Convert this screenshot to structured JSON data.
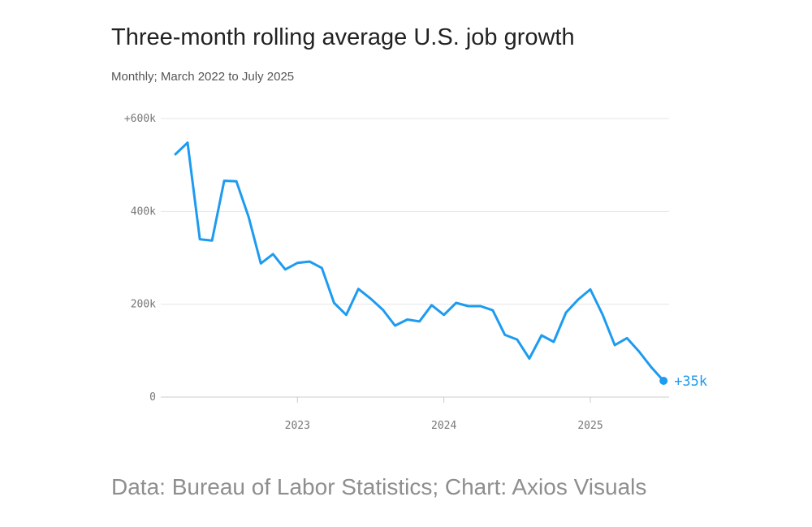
{
  "title": "Three-month rolling average U.S. job growth",
  "subtitle": "Monthly; March 2022 to July 2025",
  "source": "Data: Bureau of Labor Statistics; Chart: Axios Visuals",
  "colors": {
    "line": "#1d9bf0",
    "grid": "#e6e6e6",
    "axis": "#cccccc",
    "tick_text": "#777777"
  },
  "chart_data": {
    "type": "line",
    "title": "Three-month rolling average U.S. job growth",
    "subtitle": "Monthly; March 2022 to July 2025",
    "xlabel": "",
    "ylabel": "",
    "ylim": [
      0,
      600000
    ],
    "xlim": [
      "2022-03",
      "2025-07"
    ],
    "grid": true,
    "y_ticks": [
      {
        "value": 0,
        "label": "0"
      },
      {
        "value": 200000,
        "label": "200k"
      },
      {
        "value": 400000,
        "label": "400k"
      },
      {
        "value": 600000,
        "label": "+600k"
      }
    ],
    "x_ticks": [
      {
        "value": "2023-01",
        "label": "2023"
      },
      {
        "value": "2024-01",
        "label": "2024"
      },
      {
        "value": "2025-01",
        "label": "2025"
      }
    ],
    "end_label": "+35k",
    "series": [
      {
        "x": [
          "2022-03",
          "2022-04",
          "2022-05",
          "2022-06",
          "2022-07",
          "2022-08",
          "2022-09",
          "2022-10",
          "2022-11",
          "2022-12",
          "2023-01",
          "2023-02",
          "2023-03",
          "2023-04",
          "2023-05",
          "2023-06",
          "2023-07",
          "2023-08",
          "2023-09",
          "2023-10",
          "2023-11",
          "2023-12",
          "2024-01",
          "2024-02",
          "2024-03",
          "2024-04",
          "2024-05",
          "2024-06",
          "2024-07",
          "2024-08",
          "2024-09",
          "2024-10",
          "2024-11",
          "2024-12",
          "2025-01",
          "2025-02",
          "2025-03",
          "2025-04",
          "2025-05",
          "2025-06",
          "2025-07"
        ],
        "values": [
          523000,
          548000,
          340000,
          337000,
          466000,
          465000,
          388000,
          288000,
          308000,
          275000,
          289000,
          292000,
          278000,
          203000,
          177000,
          233000,
          212000,
          188000,
          154000,
          167000,
          163000,
          198000,
          177000,
          203000,
          196000,
          196000,
          187000,
          134000,
          124000,
          83000,
          133000,
          119000,
          182000,
          210000,
          232000,
          178000,
          112000,
          127000,
          98000,
          64000,
          35000
        ]
      }
    ]
  }
}
